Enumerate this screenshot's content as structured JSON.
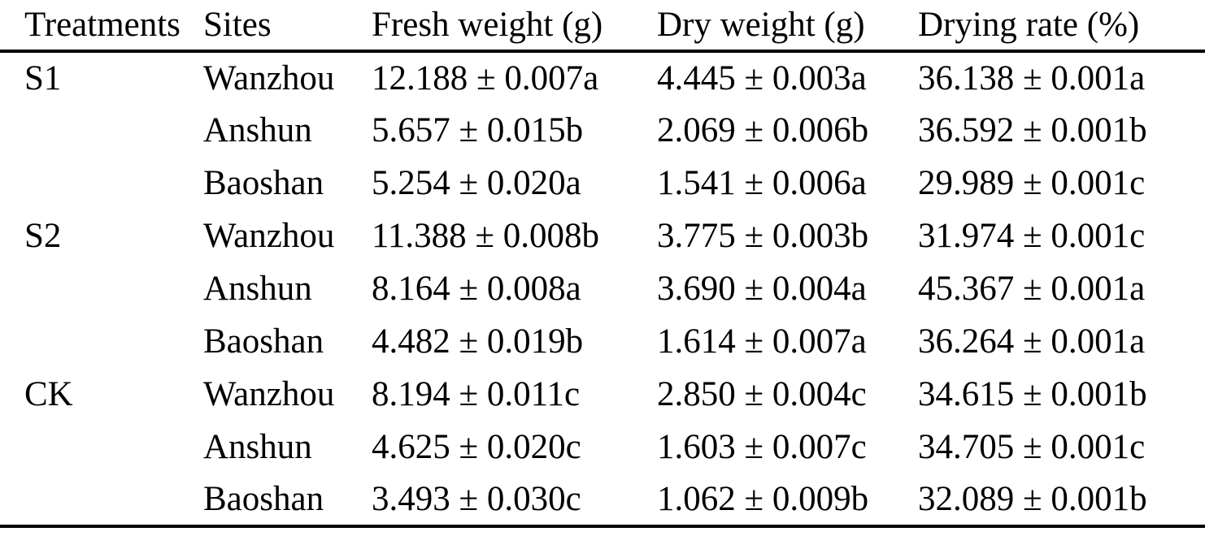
{
  "table": {
    "columns": [
      "Treatments",
      "Sites",
      "Fresh weight (g)",
      "Dry weight (g)",
      "Drying rate (%)"
    ],
    "rows": [
      {
        "treatment": "S1",
        "site": "Wanzhou",
        "fresh": "12.188 ± 0.007a",
        "dry": "4.445 ± 0.003a",
        "rate": "36.138 ± 0.001a"
      },
      {
        "treatment": "",
        "site": "Anshun",
        "fresh": "5.657 ± 0.015b",
        "dry": "2.069 ± 0.006b",
        "rate": "36.592 ± 0.001b"
      },
      {
        "treatment": "",
        "site": "Baoshan",
        "fresh": "5.254 ± 0.020a",
        "dry": "1.541 ± 0.006a",
        "rate": "29.989 ± 0.001c"
      },
      {
        "treatment": "S2",
        "site": "Wanzhou",
        "fresh": "11.388 ± 0.008b",
        "dry": "3.775 ± 0.003b",
        "rate": "31.974 ± 0.001c"
      },
      {
        "treatment": "",
        "site": "Anshun",
        "fresh": "8.164 ± 0.008a",
        "dry": "3.690 ± 0.004a",
        "rate": "45.367 ± 0.001a"
      },
      {
        "treatment": "",
        "site": "Baoshan",
        "fresh": "4.482 ± 0.019b",
        "dry": "1.614 ± 0.007a",
        "rate": "36.264 ± 0.001a"
      },
      {
        "treatment": "CK",
        "site": "Wanzhou",
        "fresh": "8.194 ± 0.011c",
        "dry": "2.850 ± 0.004c",
        "rate": "34.615 ± 0.001b"
      },
      {
        "treatment": "",
        "site": "Anshun",
        "fresh": "4.625 ± 0.020c",
        "dry": "1.603 ± 0.007c",
        "rate": "34.705 ± 0.001c"
      },
      {
        "treatment": "",
        "site": "Baoshan",
        "fresh": "3.493 ± 0.030c",
        "dry": "1.062 ± 0.009b",
        "rate": "32.089 ± 0.001b"
      }
    ]
  },
  "chart_data": {
    "type": "table",
    "title": "",
    "columns": [
      "Treatments",
      "Sites",
      "Fresh weight (g)",
      "Dry weight (g)",
      "Drying rate (%)"
    ],
    "rows": [
      [
        "S1",
        "Wanzhou",
        "12.188 ± 0.007a",
        "4.445 ± 0.003a",
        "36.138 ± 0.001a"
      ],
      [
        "S1",
        "Anshun",
        "5.657 ± 0.015b",
        "2.069 ± 0.006b",
        "36.592 ± 0.001b"
      ],
      [
        "S1",
        "Baoshan",
        "5.254 ± 0.020a",
        "1.541 ± 0.006a",
        "29.989 ± 0.001c"
      ],
      [
        "S2",
        "Wanzhou",
        "11.388 ± 0.008b",
        "3.775 ± 0.003b",
        "31.974 ± 0.001c"
      ],
      [
        "S2",
        "Anshun",
        "8.164 ± 0.008a",
        "3.690 ± 0.004a",
        "45.367 ± 0.001a"
      ],
      [
        "S2",
        "Baoshan",
        "4.482 ± 0.019b",
        "1.614 ± 0.007a",
        "36.264 ± 0.001a"
      ],
      [
        "CK",
        "Wanzhou",
        "8.194 ± 0.011c",
        "2.850 ± 0.004c",
        "34.615 ± 0.001b"
      ],
      [
        "CK",
        "Anshun",
        "4.625 ± 0.020c",
        "1.603 ± 0.007c",
        "34.705 ± 0.001c"
      ],
      [
        "CK",
        "Baoshan",
        "3.493 ± 0.030c",
        "1.062 ± 0.009b",
        "32.089 ± 0.001b"
      ]
    ]
  }
}
